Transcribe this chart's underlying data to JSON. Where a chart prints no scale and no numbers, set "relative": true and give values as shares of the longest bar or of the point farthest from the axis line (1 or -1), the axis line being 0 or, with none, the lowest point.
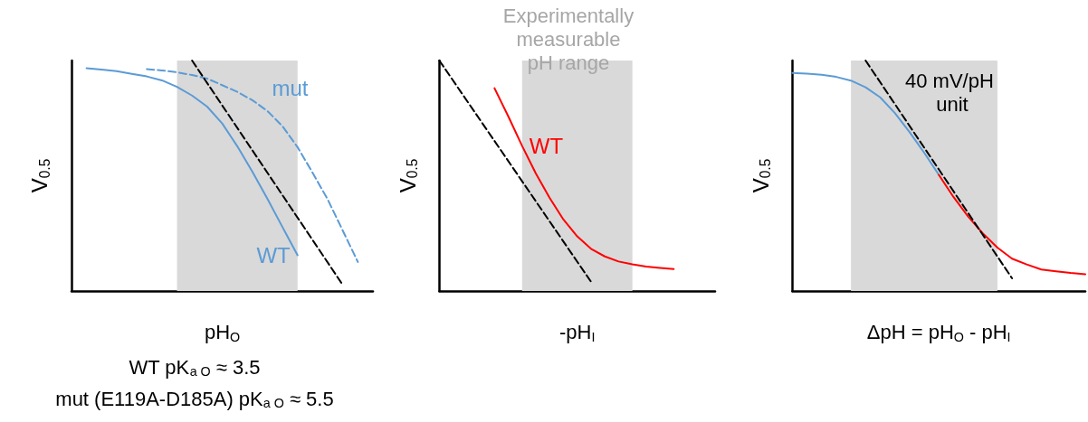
{
  "chart_data": [
    {
      "type": "line",
      "relative": true,
      "xlabel": "pH$_{O}$",
      "ylabel": "V$_{0.5}$",
      "categories": [
        null,
        null,
        null,
        null,
        null,
        null,
        null,
        null,
        null,
        null,
        null,
        null,
        null,
        null,
        null,
        null,
        null,
        null,
        null,
        null,
        null
      ],
      "annotations": [
        "WT pK$_{a O}$ ≈ 3.5",
        "mut (E119A-D185A) pK$_{a O}$ ≈ 5.5"
      ],
      "series": [
        {
          "name": "WT",
          "color": "#5b9bd5",
          "line_style": "solid",
          "values": [
            null,
            0.967,
            0.961,
            0.954,
            0.942,
            0.931,
            0.914,
            0.886,
            0.848,
            0.8,
            0.727,
            0.628,
            0.518,
            0.4,
            0.277,
            0.155,
            null,
            null,
            null,
            null,
            null
          ]
        },
        {
          "name": "mut",
          "color": "#5b9bd5",
          "line_style": "dashed",
          "values": [
            null,
            null,
            null,
            null,
            null,
            0.963,
            0.957,
            0.949,
            0.937,
            0.922,
            0.893,
            0.864,
            0.828,
            0.781,
            0.715,
            0.624,
            0.513,
            0.397,
            0.262,
            0.126,
            null
          ]
        },
        {
          "color": "#000000",
          "line_style": "dashed",
          "values": [
            null,
            null,
            null,
            null,
            null,
            null,
            null,
            null,
            1,
            null,
            null,
            null,
            null,
            null,
            null,
            null,
            null,
            null,
            0.026,
            null,
            null
          ]
        }
      ]
    },
    {
      "type": "line",
      "relative": true,
      "xlabel": "-pH$_{I}$",
      "ylabel": "V$_{0.5}$",
      "categories": [
        null,
        null,
        null,
        null,
        null,
        null,
        null,
        null,
        null,
        null,
        null,
        null,
        null,
        null,
        null,
        null,
        null,
        null,
        null,
        null,
        null
      ],
      "annotations": [
        "Experimentally measurable pH range"
      ],
      "series": [
        {
          "name": "WT",
          "color": "#ff0000",
          "line_style": "solid",
          "values": [
            null,
            null,
            null,
            null,
            0.88,
            0.758,
            0.63,
            0.51,
            0.404,
            0.31,
            0.237,
            0.183,
            0.15,
            0.128,
            0.116,
            0.106,
            0.1,
            0.095,
            null,
            null,
            null
          ]
        },
        {
          "color": "#000000",
          "line_style": "dashed",
          "values": [
            1,
            null,
            null,
            null,
            null,
            null,
            null,
            null,
            null,
            null,
            null,
            0.04,
            null,
            null,
            null,
            null,
            null,
            null,
            null,
            null,
            null
          ]
        }
      ]
    },
    {
      "type": "line",
      "relative": true,
      "xlabel": "ΔpH = pH$_{O}$ - pH$_{I}$",
      "ylabel": "V$_{0.5}$",
      "categories": [
        null,
        null,
        null,
        null,
        null,
        null,
        null,
        null,
        null,
        null,
        null,
        null,
        null,
        null,
        null,
        null,
        null,
        null,
        null,
        null,
        null
      ],
      "annotations": [
        "40 mV/pH unit"
      ],
      "series": [
        {
          "color": "#5b9bd5",
          "line_style": "solid",
          "values": [
            0.946,
            0.943,
            0.938,
            0.929,
            0.913,
            0.884,
            0.84,
            0.772,
            0.69,
            0.6,
            0.504,
            null,
            null,
            null,
            null,
            null,
            null,
            null,
            null,
            null,
            null
          ]
        },
        {
          "color": "#ff0000",
          "line_style": "solid",
          "values": [
            null,
            null,
            null,
            null,
            null,
            null,
            null,
            null,
            null,
            null,
            0.504,
            0.408,
            0.323,
            0.25,
            0.188,
            0.14,
            0.115,
            0.093,
            0.085,
            0.078,
            0.073
          ]
        },
        {
          "color": "#000000",
          "line_style": "dashed",
          "values": [
            null,
            null,
            null,
            null,
            null,
            1,
            null,
            null,
            null,
            null,
            null,
            null,
            null,
            null,
            null,
            0.055,
            null,
            null,
            null,
            null,
            null
          ]
        }
      ]
    }
  ]
}
